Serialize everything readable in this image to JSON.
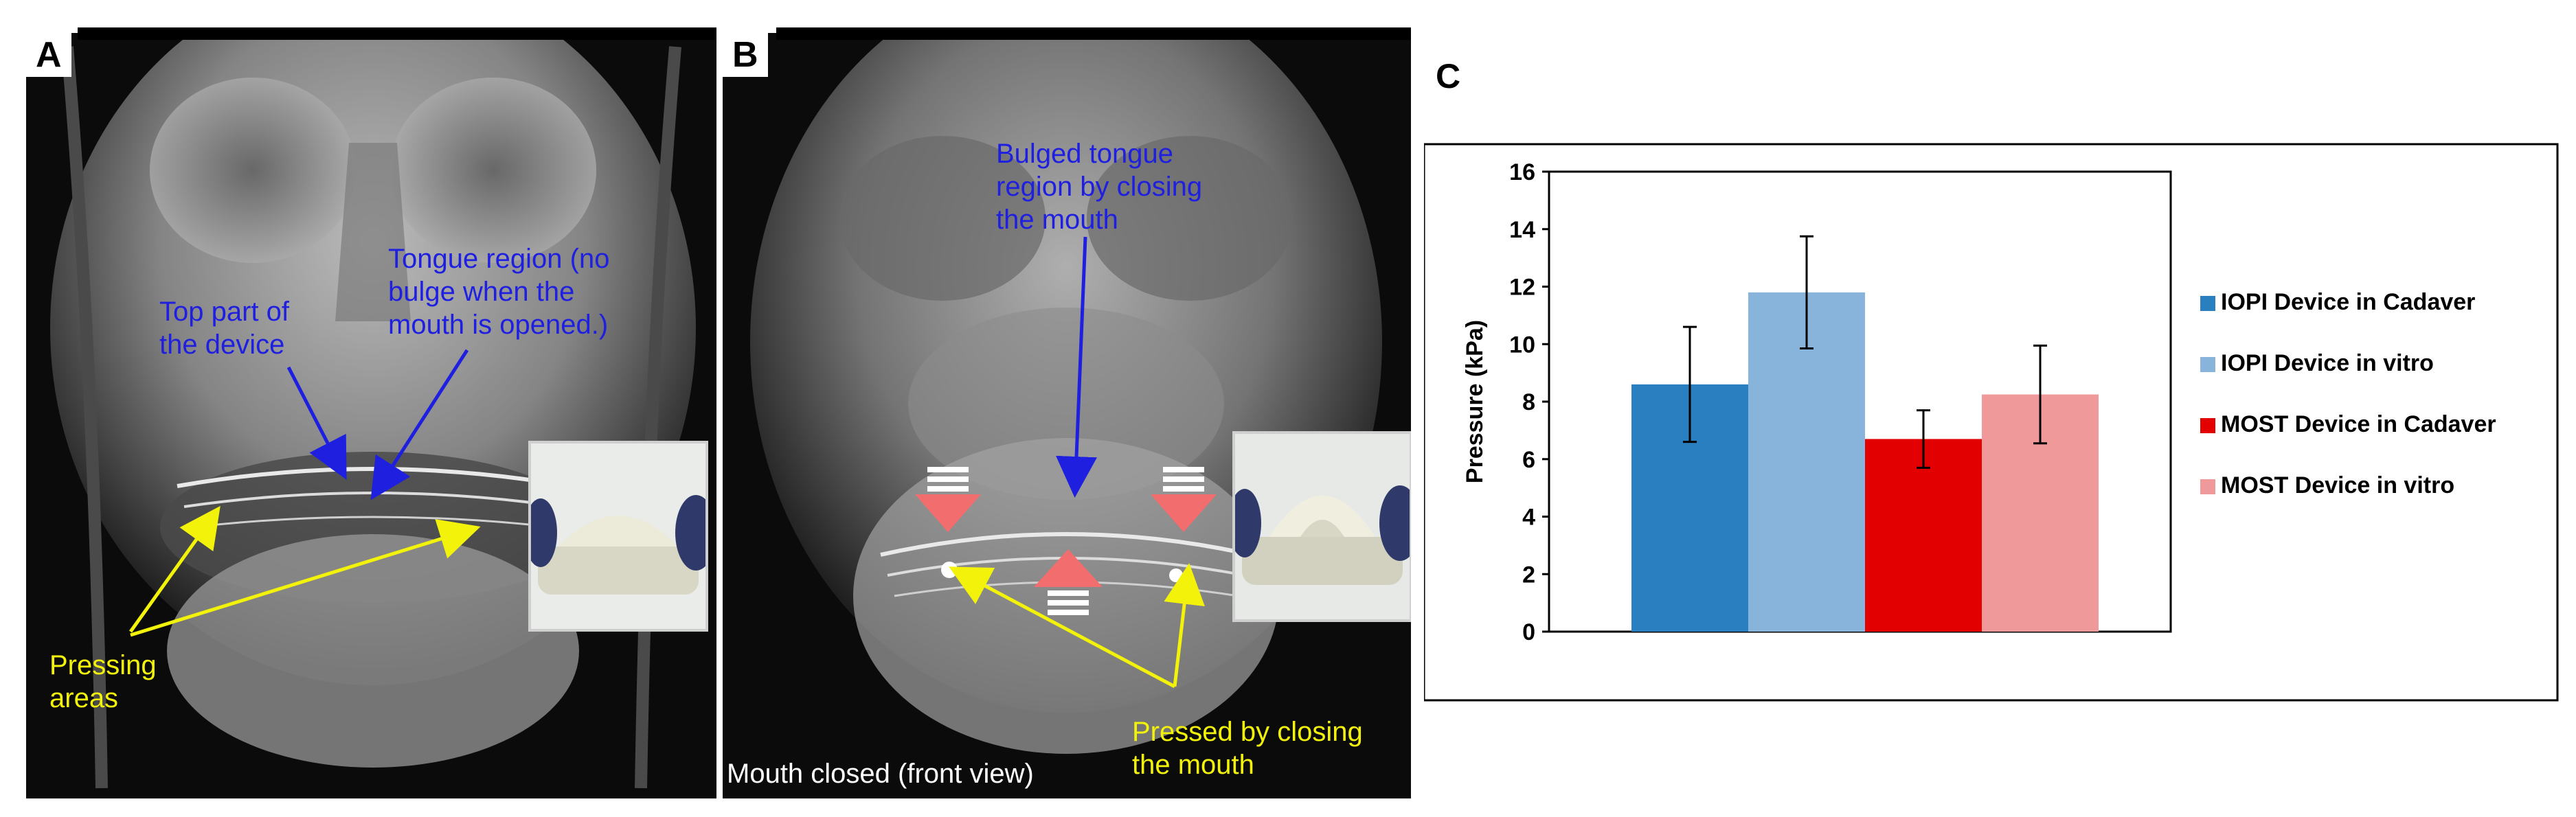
{
  "panels": {
    "a": {
      "letter": "A",
      "annotations": {
        "top_part": "Top part of\nthe device",
        "tongue_region": "Tongue region (no\nbulge when the\nmouth is opened.)",
        "pressing_areas": "Pressing\nareas"
      }
    },
    "b": {
      "letter": "B",
      "annotations": {
        "bulged_tongue": "Bulged tongue\nregion by closing\nthe mouth",
        "pressed_by_closing": "Pressed by closing\nthe mouth",
        "caption": "Mouth closed (front view)"
      }
    },
    "c": {
      "letter": "C"
    }
  },
  "colors": {
    "annotation_blue": "#1f1fe0",
    "annotation_yellow": "#f2f20a",
    "pressure_arrow": "#f26d6d"
  },
  "chart_data": {
    "type": "bar",
    "title": "",
    "xlabel": "",
    "ylabel": "Pressure (kPa)",
    "ylim": [
      0,
      16
    ],
    "yticks": [
      "0",
      "2",
      "4",
      "6",
      "8",
      "10",
      "12",
      "14",
      "16"
    ],
    "grid": false,
    "legend_position": "right",
    "series": [
      {
        "name": "IOPI Device in Cadaver",
        "value": 8.6,
        "error": 2.0,
        "color": "#2a7fc0"
      },
      {
        "name": "IOPI Device in vitro",
        "value": 11.8,
        "error": 1.95,
        "color": "#88b4dc"
      },
      {
        "name": "MOST Device in Cadaver",
        "value": 6.7,
        "error": 1.0,
        "color": "#e30000"
      },
      {
        "name": "MOST Device in vitro",
        "value": 8.25,
        "error": 1.7,
        "color": "#f0999b"
      }
    ]
  }
}
